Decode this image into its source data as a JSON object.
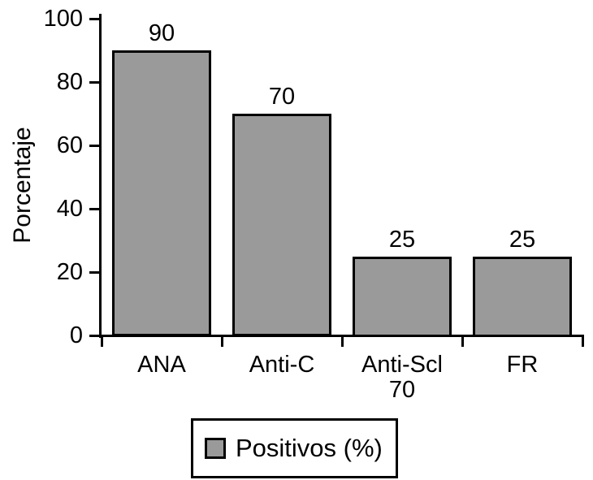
{
  "chart_data": {
    "type": "bar",
    "title": "",
    "categories": [
      "ANA",
      "Anti-C",
      "Anti-Scl 70",
      "FR"
    ],
    "category_label_lines": [
      [
        "ANA"
      ],
      [
        "Anti-C"
      ],
      [
        "Anti-Scl",
        "70"
      ],
      [
        "FR"
      ]
    ],
    "values": [
      90,
      70,
      25,
      25
    ],
    "bar_value_labels": [
      "90",
      "70",
      "25",
      "25"
    ],
    "series": [
      {
        "name": "Positivos (%)",
        "values": [
          90,
          70,
          25,
          25
        ]
      }
    ],
    "xlabel": "",
    "ylabel": "Porcentaje",
    "ylim": [
      0,
      100
    ],
    "yticks": [
      0,
      20,
      40,
      60,
      80,
      100
    ],
    "grid": false,
    "legend_position": "bottom-center",
    "colors": {
      "bar_fill": "#9a9a9a",
      "bar_border": "#000000",
      "axis": "#000000",
      "text": "#000000",
      "background": "#ffffff"
    }
  },
  "legend": {
    "label": "Positivos (%)",
    "swatch_icon": "gray-square-icon"
  }
}
